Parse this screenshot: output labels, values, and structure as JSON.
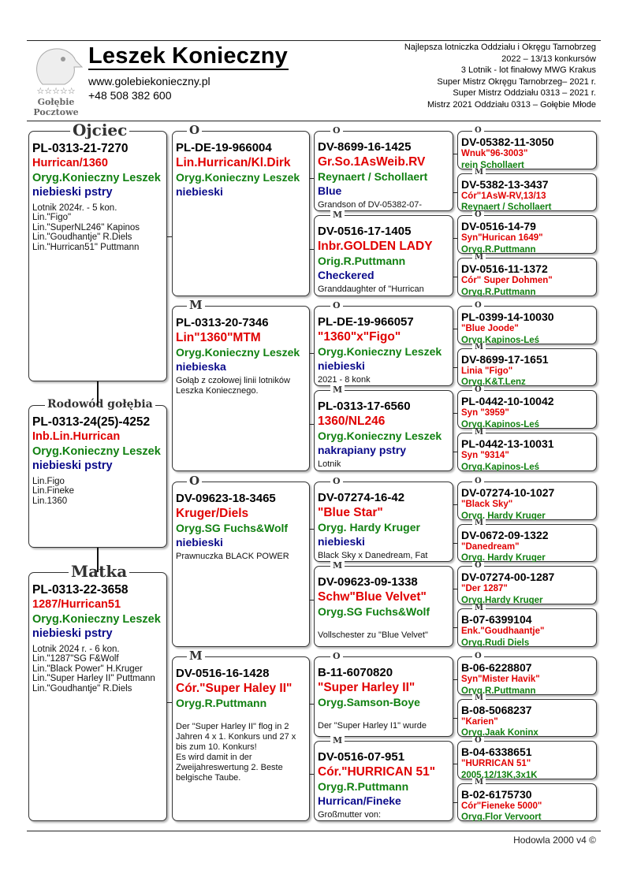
{
  "header": {
    "logo_text": [
      "Gołębie",
      "Pocztowe"
    ],
    "title": "Leszek Konieczny",
    "website": "www.golebiekonieczny.pl",
    "phone": "+48 508 382 600",
    "achievements": [
      "Najlepsza lotniczka Oddziału i Okręgu Tarnobrzeg",
      "2022 – 13/13 konkursów",
      "3 Lotnik - lot finałowy MWG Krakus",
      "Super Mistrz Okręgu Tarnobrzeg– 2021 r.",
      "Super Mistrz Oddziału 0313 – 2021 r.",
      "Mistrz 2021 Oddziału 0313 – Gołębie Młode"
    ]
  },
  "colors": {
    "name": "#e00000",
    "owner": "#118011",
    "color": "#0a0a8a"
  },
  "pedigree": {
    "gen1": [
      {
        "label": "Ojciec",
        "ring": "PL-0313-21-7270",
        "name": "Hurrican/1360",
        "owner": "Oryg.Konieczny Leszek",
        "color": "niebieski pstry",
        "notes": [
          "Lotnik 2024r. - 5 kon.",
          "Lin.\"Figo\"",
          "Lin.\"SuperNL246\" Kapinos",
          "Lin.\"Goudhantje\" R.Diels",
          "Lin.\"Hurrican51\" Puttmann"
        ]
      },
      {
        "label": "Rodowód gołębia",
        "ring": "PL-0313-24(25)-4252",
        "name": "Inb.Lin.Hurrican",
        "owner": "Oryg.Konieczny Leszek",
        "color": "niebieski pstry",
        "notes": [
          "Lin.Figo",
          "Lin.Fineke",
          "Lin.1360"
        ]
      },
      {
        "label": "Matka",
        "ring": "PL-0313-22-3658",
        "name": "1287/Hurrican51",
        "owner": "Oryg.Konieczny Leszek",
        "color": "niebieski pstry",
        "notes": [
          "Lotnik 2024 r. - 6 kon.",
          "Lin.\"1287\"SG F&Wolf",
          "Lin.\"Black Power\" H.Kruger",
          "Lin.\"Super Harley II\" Puttmann",
          "Lin.\"Goudhantje\" R.Diels"
        ]
      }
    ],
    "gen2": [
      {
        "label": "O",
        "ring": "PL-DE-19-966004",
        "name": "Lin.Hurrican/Kl.Dirk",
        "owner": "Oryg.Konieczny Leszek",
        "color": "niebieski",
        "notes": []
      },
      {
        "label": "M",
        "ring": "PL-0313-20-7346",
        "name": "Lin\"1360\"MTM",
        "owner": "Oryg.Konieczny Leszek",
        "color": "niebieska",
        "notes": [
          "Gołąb z czołowej linii lotników",
          "Leszka Koniecznego."
        ]
      },
      {
        "label": "O",
        "ring": "DV-09623-18-3465",
        "name": "Kruger/Diels",
        "owner": "Oryg.SG Fuchs&Wolf",
        "color": "niebieski",
        "notes": [
          "Prawnuczka BLACK POWER"
        ]
      },
      {
        "label": "M",
        "ring": "DV-0516-16-1428",
        "name": "Cór.\"Super Haley II\"",
        "owner": "Oryg.R.Puttmann",
        "color": "",
        "notes": [
          "",
          "Der \"Super Harley II\" flog in 2",
          "Jahren 4 x 1. Konkurs und 27 x",
          "bis zum 10. Konkurs!",
          "Es wird damit in der",
          "Zweijahreswertung 2. Beste",
          "belgische Taube."
        ]
      }
    ],
    "gen3": [
      {
        "label": "O",
        "ring": "DV-8699-16-1425",
        "name": "Gr.So.1AsWeib.RV",
        "owner": "Reynaert / Schollaert",
        "color": "Blue",
        "notes": [
          "Grandson of DV-05382-07-"
        ]
      },
      {
        "label": "M",
        "ring": "DV-0516-17-1405",
        "name": "Inbr.GOLDEN LADY",
        "owner": "Orig.R.Puttmann",
        "color": "Checkered",
        "notes": [
          "Granddaughter of \"Hurrican"
        ]
      },
      {
        "label": "O",
        "ring": "PL-DE-19-966057",
        "name": "\"1360\"x\"Figo\"",
        "owner": "Oryg.Konieczny Leszek",
        "color": "niebieski",
        "notes": [
          "2021 - 8 konk"
        ]
      },
      {
        "label": "M",
        "ring": "PL-0313-17-6560",
        "name": "1360/NL246",
        "owner": "Oryg.Konieczny Leszek",
        "color": "nakrapiany pstry",
        "notes": [
          "Lotnik"
        ]
      },
      {
        "label": "O",
        "ring": "DV-07274-16-42",
        "name": "\"Blue Star\"",
        "owner": "Oryg. Hardy Kruger",
        "color": "niebieski",
        "notes": [
          "Black Sky x Danedream, Fat"
        ]
      },
      {
        "label": "M",
        "ring": "DV-09623-09-1338",
        "name": "Schw\"Blue Velvet\"",
        "owner": "Oryg.SG Fuchs&Wolf",
        "color": "",
        "notes": [
          "",
          "Vollschester zu \"Blue Velvet\""
        ]
      },
      {
        "label": "O",
        "ring": "B-11-6070820",
        "name": "\"Super Harley II\"",
        "owner": "Oryg.Samson-Boye",
        "color": "",
        "notes": [
          "",
          "Der \"Super Harley I1\" wurde"
        ]
      },
      {
        "label": "M",
        "ring": "DV-0516-07-951",
        "name": "Cór.\"HURRICAN 51\"",
        "owner": "Oryg.R.Puttmann",
        "color": "Hurrican/Fineke",
        "notes": [
          "Großmutter von:"
        ]
      }
    ],
    "gen4": [
      {
        "label": "O",
        "ring": "DV-05382-11-3050",
        "name": "Wnuk\"96-3003\"",
        "owner": "rein Schollaert"
      },
      {
        "label": "M",
        "ring": "DV-5382-13-3437",
        "name": "Cór\"1AsW-RV,13/13",
        "owner": "Reynaert / Schollaert"
      },
      {
        "label": "O",
        "ring": "DV-0516-14-79",
        "name": "Syn\"Hurican 1649\"",
        "owner": "Oryg.R.Puttmann"
      },
      {
        "label": "M",
        "ring": "DV-0516-11-1372",
        "name": "Cór\" Super Dohmen\"",
        "owner": "Oryg.R.Puttmann"
      },
      {
        "label": "O",
        "ring": "PL-0399-14-10030",
        "name": "\"Blue Joode\"",
        "owner": "Oryg.Kapinos-Leś"
      },
      {
        "label": "M",
        "ring": "DV-8699-17-1651",
        "name": "Linia \"Figo\"",
        "owner": "Oryg.K&T.Lenz"
      },
      {
        "label": "O",
        "ring": "PL-0442-10-10042",
        "name": "Syn \"3959\"",
        "owner": "Oryg.Kapinos-Leś"
      },
      {
        "label": "M",
        "ring": "PL-0442-13-10031",
        "name": "Syn \"9314\"",
        "owner": "Oryg.Kapinos-Leś"
      },
      {
        "label": "O",
        "ring": "DV-07274-10-1027",
        "name": "\"Black Sky\"",
        "owner": "Oryg. Hardy Kruger"
      },
      {
        "label": "M",
        "ring": "DV-0672-09-1322",
        "name": "\"Danedream\"",
        "owner": "Oryg. Hardy Kruger"
      },
      {
        "label": "O",
        "ring": "DV-07274-00-1287",
        "name": "\"Der 1287\"",
        "owner": "Oryg.Hardy Kruger"
      },
      {
        "label": "M",
        "ring": "B-07-6399104",
        "name": "Enk.\"Goudhaantje\"",
        "owner": "Oryg.Rudi Diels"
      },
      {
        "label": "O",
        "ring": "B-06-6228807",
        "name": "Syn\"Mister Havik\"",
        "owner": "Oryg.R.Puttmann"
      },
      {
        "label": "M",
        "ring": "B-08-5068237",
        "name": "\"Karien\"",
        "owner": "Oryg.Jaak Koninx"
      },
      {
        "label": "O",
        "ring": "B-04-6338651",
        "name": "\"HURRICAN 51\"",
        "owner": "2005,12/13K,3x1K"
      },
      {
        "label": "M",
        "ring": "B-02-6175730",
        "name": "Cór\"Fieneke 5000\"",
        "owner": "Oryg.Flor Vervoort"
      }
    ]
  },
  "footer": "Hodowla 2000 v4 ©"
}
